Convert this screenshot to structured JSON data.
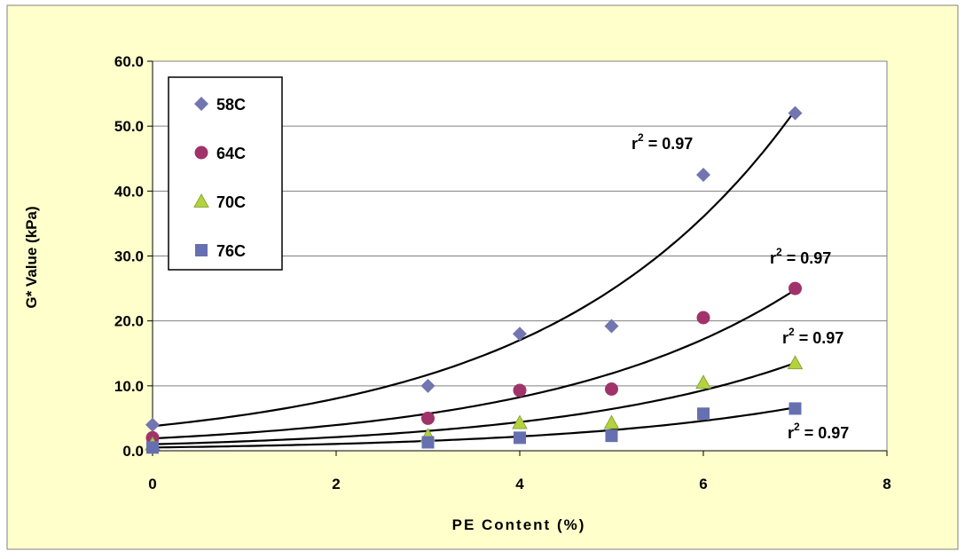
{
  "colors": {
    "background": "#FFFFCC",
    "plot_area": "#FFFFFF",
    "frame": "#808080",
    "grid": "#808080",
    "trendline": "#000000",
    "s58C": "#7275B0",
    "s64C": "#A0336A",
    "s70C": "#B4D23C",
    "s76C": "#6670B0"
  },
  "chart_data": {
    "type": "scatter",
    "title": "",
    "xlabel": "PE Content (%)",
    "ylabel": "G* Value (kPa)",
    "xlim": [
      0,
      8
    ],
    "ylim": [
      0,
      60
    ],
    "x_ticks": [
      {
        "value": 0,
        "label": "0"
      },
      {
        "value": 2,
        "label": "2"
      },
      {
        "value": 4,
        "label": "4"
      },
      {
        "value": 6,
        "label": "6"
      },
      {
        "value": 8,
        "label": "8"
      }
    ],
    "y_ticks": [
      {
        "value": 0,
        "label": "0.0"
      },
      {
        "value": 10,
        "label": "10.0"
      },
      {
        "value": 20,
        "label": "20.0"
      },
      {
        "value": 30,
        "label": "30.0"
      },
      {
        "value": 40,
        "label": "40.0"
      },
      {
        "value": 50,
        "label": "50.0"
      },
      {
        "value": 60,
        "label": "60.0"
      }
    ],
    "grid": "horizontal",
    "legend_position": "top-left",
    "series": [
      {
        "name": "58C",
        "marker": "diamond",
        "color_key": "s58C",
        "x": [
          0,
          3,
          4,
          5,
          6,
          7
        ],
        "y": [
          4.0,
          10.0,
          18.0,
          19.2,
          42.5,
          52.0
        ],
        "trend": {
          "type": "exponential",
          "a": 3.8,
          "b": 0.375,
          "r2_label": "r",
          "r2_sup": "2",
          "r2_value": " = 0.97"
        }
      },
      {
        "name": "64C",
        "marker": "circle",
        "color_key": "s64C",
        "x": [
          0,
          3,
          4,
          5,
          6,
          7
        ],
        "y": [
          2.0,
          5.0,
          9.3,
          9.5,
          20.5,
          25.0
        ],
        "trend": {
          "type": "exponential",
          "a": 1.9,
          "b": 0.367,
          "r2_label": "r",
          "r2_sup": "2",
          "r2_value": " = 0.97"
        }
      },
      {
        "name": "70C",
        "marker": "triangle",
        "color_key": "s70C",
        "x": [
          0,
          3,
          4,
          5,
          6,
          7
        ],
        "y": [
          1.0,
          2.3,
          4.3,
          4.3,
          10.5,
          13.5
        ],
        "trend": {
          "type": "exponential",
          "a": 1.0,
          "b": 0.372,
          "r2_label": "r",
          "r2_sup": "2",
          "r2_value": " = 0.97"
        }
      },
      {
        "name": "76C",
        "marker": "square",
        "color_key": "s76C",
        "x": [
          0,
          3,
          4,
          5,
          6,
          7
        ],
        "y": [
          0.5,
          1.3,
          2.0,
          2.3,
          5.7,
          6.5
        ],
        "trend": {
          "type": "exponential",
          "a": 0.5,
          "b": 0.37,
          "r2_label": "r",
          "r2_sup": "2",
          "r2_value": " = 0.97"
        }
      }
    ]
  }
}
